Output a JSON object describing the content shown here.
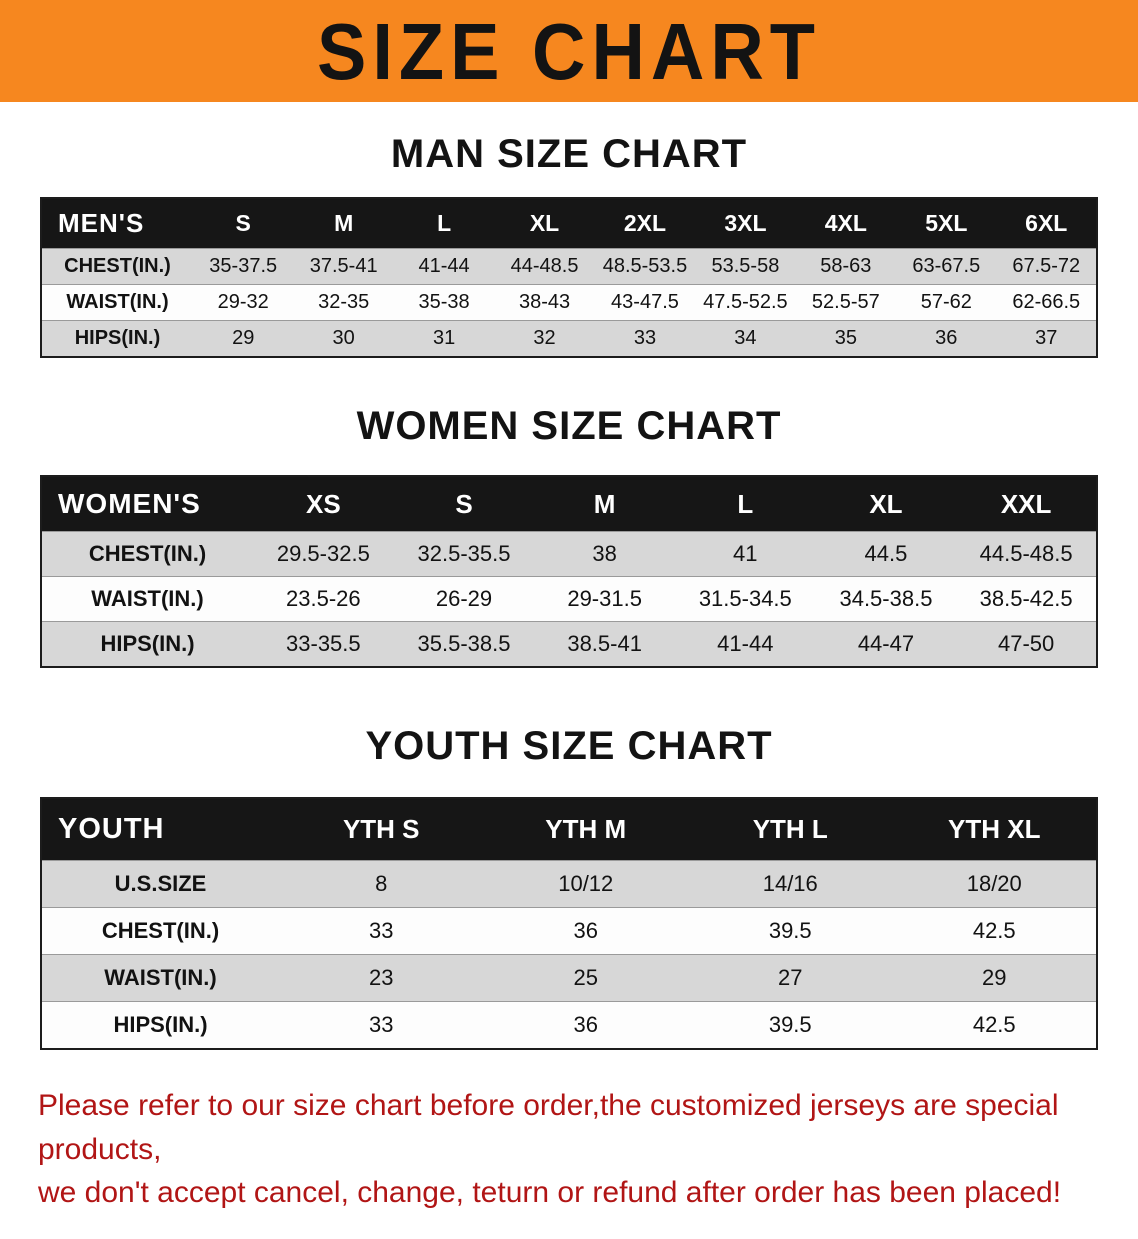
{
  "banner": {
    "title": "SIZE CHART"
  },
  "colors": {
    "banner_bg": "#f6871f",
    "header_bg": "#161616",
    "row_alt_bg": "#d7d7d7",
    "disclaimer_red": "#b11515"
  },
  "sections": [
    {
      "id": "men",
      "heading": "MAN SIZE CHART",
      "table": {
        "header": [
          "MEN'S",
          "S",
          "M",
          "L",
          "XL",
          "2XL",
          "3XL",
          "4XL",
          "5XL",
          "6XL"
        ],
        "rows": [
          [
            "CHEST(IN.)",
            "35-37.5",
            "37.5-41",
            "41-44",
            "44-48.5",
            "48.5-53.5",
            "53.5-58",
            "58-63",
            "63-67.5",
            "67.5-72"
          ],
          [
            "WAIST(IN.)",
            "29-32",
            "32-35",
            "35-38",
            "38-43",
            "43-47.5",
            "47.5-52.5",
            "52.5-57",
            "57-62",
            "62-66.5"
          ],
          [
            "HIPS(IN.)",
            "29",
            "30",
            "31",
            "32",
            "33",
            "34",
            "35",
            "36",
            "37"
          ]
        ]
      }
    },
    {
      "id": "women",
      "heading": "WOMEN SIZE CHART",
      "table": {
        "header": [
          "WOMEN'S",
          "XS",
          "S",
          "M",
          "L",
          "XL",
          "XXL"
        ],
        "rows": [
          [
            "CHEST(IN.)",
            "29.5-32.5",
            "32.5-35.5",
            "38",
            "41",
            "44.5",
            "44.5-48.5"
          ],
          [
            "WAIST(IN.)",
            "23.5-26",
            "26-29",
            "29-31.5",
            "31.5-34.5",
            "34.5-38.5",
            "38.5-42.5"
          ],
          [
            "HIPS(IN.)",
            "33-35.5",
            "35.5-38.5",
            "38.5-41",
            "41-44",
            "44-47",
            "47-50"
          ]
        ]
      }
    },
    {
      "id": "youth",
      "heading": "YOUTH SIZE CHART",
      "table": {
        "header": [
          "YOUTH",
          "YTH S",
          "YTH M",
          "YTH L",
          "YTH XL"
        ],
        "rows": [
          [
            "U.S.SIZE",
            "8",
            "10/12",
            "14/16",
            "18/20"
          ],
          [
            "CHEST(IN.)",
            "33",
            "36",
            "39.5",
            "42.5"
          ],
          [
            "WAIST(IN.)",
            "23",
            "25",
            "27",
            "29"
          ],
          [
            "HIPS(IN.)",
            "33",
            "36",
            "39.5",
            "42.5"
          ]
        ]
      }
    }
  ],
  "disclaimer": {
    "lines": [
      "Please refer to our size chart before order,the customized jerseys are special products,",
      "we don't accept cancel, change, teturn or refund after order has been placed!"
    ]
  }
}
